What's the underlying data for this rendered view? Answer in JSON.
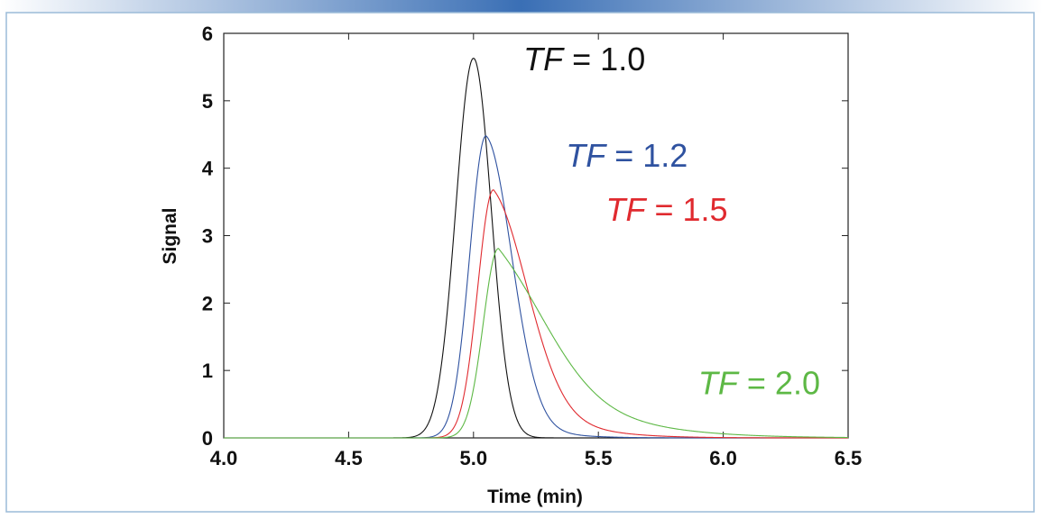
{
  "chart_data": {
    "type": "line",
    "title": "",
    "xlabel": "Time (min)",
    "ylabel": "Signal",
    "xlim": [
      4.0,
      6.5
    ],
    "ylim": [
      0,
      6
    ],
    "x_ticks": [
      4.0,
      4.5,
      5.0,
      5.5,
      6.0,
      6.5
    ],
    "x_tick_labels": [
      "4.0",
      "4.5",
      "5.0",
      "5.5",
      "6.0",
      "6.5"
    ],
    "y_ticks": [
      0,
      1,
      2,
      3,
      4,
      5,
      6
    ],
    "y_tick_labels": [
      "0",
      "1",
      "2",
      "3",
      "4",
      "5",
      "6"
    ],
    "grid": false,
    "legend": "none",
    "series": [
      {
        "color": "#111111",
        "peak_time": 5.0,
        "peak_signal": 5.63
      },
      {
        "color": "#2f52a0",
        "peak_time": 5.05,
        "peak_signal": 4.48
      },
      {
        "color": "#e02a2f",
        "peak_time": 5.08,
        "peak_signal": 3.68
      },
      {
        "color": "#5db845",
        "peak_time": 5.1,
        "peak_signal": 2.81
      }
    ],
    "annotations": [
      {
        "var": "TF",
        "rest": " = 1.0",
        "color": "#111111",
        "x": 5.2,
        "y": 5.45
      },
      {
        "var": "TF",
        "rest": " = 1.2",
        "color": "#2f52a0",
        "x": 5.37,
        "y": 4.02
      },
      {
        "var": "TF",
        "rest": " = 1.5",
        "color": "#e02a2f",
        "x": 5.53,
        "y": 3.22
      },
      {
        "var": "TF",
        "rest": " = 2.0",
        "color": "#5db845",
        "x": 5.9,
        "y": 0.65
      }
    ]
  },
  "colors": {
    "frame_border": "#9bbbd8",
    "header_bar": "#3a6fb5",
    "axis": "#222222"
  }
}
